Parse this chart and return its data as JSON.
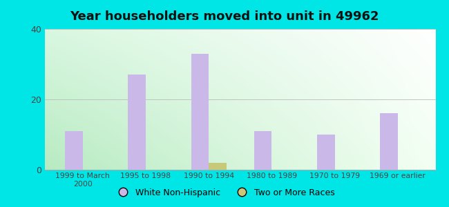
{
  "title": "Year householders moved into unit in 49962",
  "categories": [
    "1999 to March\n2000",
    "1995 to 1998",
    "1990 to 1994",
    "1980 to 1989",
    "1970 to 1979",
    "1969 or earlier"
  ],
  "white_non_hispanic": [
    11,
    27,
    33,
    11,
    10,
    16
  ],
  "two_or_more_races": [
    0,
    0,
    2,
    0,
    0,
    0
  ],
  "white_color": "#c9b8e8",
  "two_races_color": "#c8c87a",
  "ylim": [
    0,
    40
  ],
  "yticks": [
    0,
    20,
    40
  ],
  "background_outer": "#00e5e5",
  "bar_width": 0.28,
  "legend_labels": [
    "White Non-Hispanic",
    "Two or More Races"
  ],
  "gradient_topleft": [
    0.85,
    0.97,
    0.88
  ],
  "gradient_topright": [
    1.0,
    1.0,
    1.0
  ],
  "gradient_bottomleft": [
    0.72,
    0.92,
    0.76
  ],
  "gradient_bottomright": [
    0.95,
    1.0,
    0.95
  ]
}
